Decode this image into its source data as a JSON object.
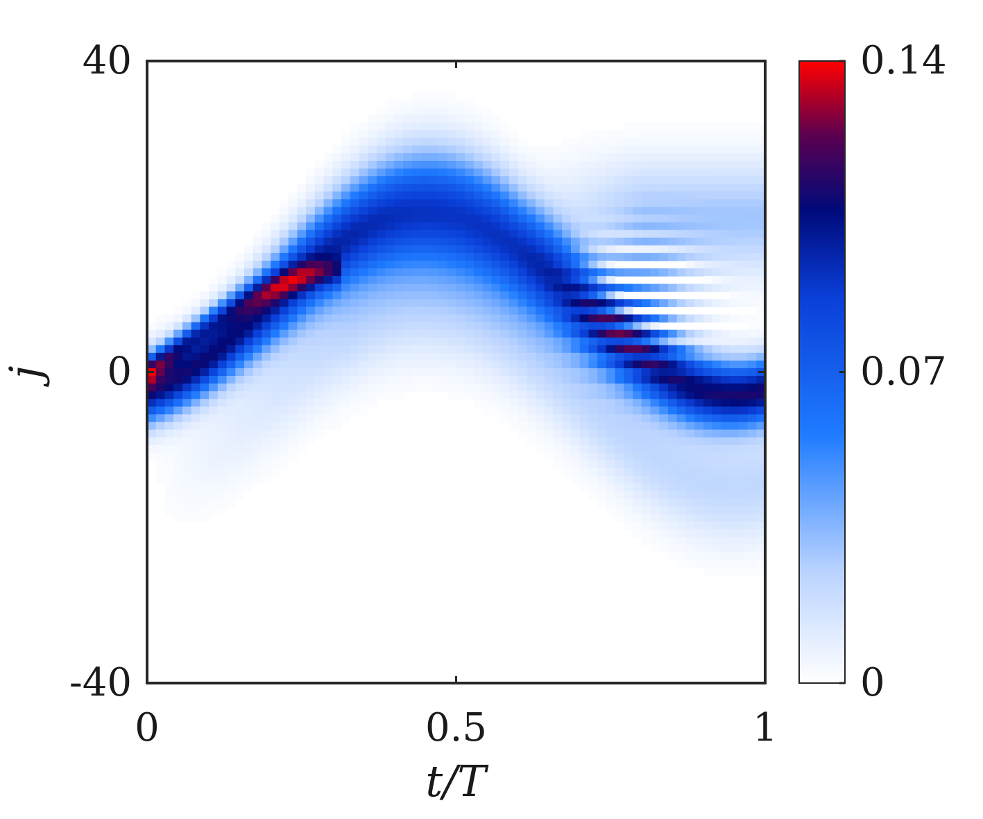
{
  "chart_data": {
    "type": "heatmap",
    "title": "",
    "xlabel": "t/T",
    "ylabel": "j",
    "xlim": [
      0,
      1
    ],
    "ylim": [
      -40,
      40
    ],
    "xticks": [
      {
        "value": 0,
        "label": "0"
      },
      {
        "value": 0.5,
        "label": "0.5"
      },
      {
        "value": 1,
        "label": "1"
      }
    ],
    "yticks": [
      {
        "value": -40,
        "label": "-40"
      },
      {
        "value": 0,
        "label": "0"
      },
      {
        "value": 40,
        "label": "40"
      }
    ],
    "colorbar": {
      "min": 0,
      "max": 0.14,
      "ticks": [
        {
          "value": 0,
          "label": "0"
        },
        {
          "value": 0.07,
          "label": "0.07"
        },
        {
          "value": 0.14,
          "label": "0.14"
        }
      ],
      "colormap": [
        "#ffffff",
        "#b9d3ff",
        "#1f7bff",
        "#0a3fd8",
        "#000a7a",
        "#5a0050",
        "#ff0000"
      ]
    },
    "grid": false,
    "legend": "none"
  }
}
